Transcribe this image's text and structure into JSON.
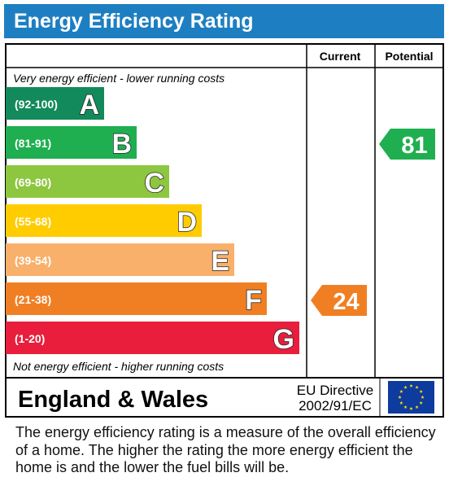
{
  "title": "Energy Efficiency Rating",
  "columns": {
    "current": "Current",
    "potential": "Potential"
  },
  "top_caption": "Very energy efficient - lower running costs",
  "bottom_caption": "Not energy efficient - higher running costs",
  "region": "England & Wales",
  "directive": {
    "line1": "EU Directive",
    "line2": "2002/91/EC"
  },
  "footnote": "The energy efficiency rating is a measure of the overall efficiency of a home.  The higher the rating the more energy efficient the home is and the lower the fuel bills will be.",
  "chart_data": {
    "type": "bar",
    "bands": [
      {
        "letter": "A",
        "range": "(92-100)",
        "min": 92,
        "max": 100,
        "color": "#138a5b"
      },
      {
        "letter": "B",
        "range": "(81-91)",
        "min": 81,
        "max": 91,
        "color": "#1faf50"
      },
      {
        "letter": "C",
        "range": "(69-80)",
        "min": 69,
        "max": 80,
        "color": "#8dc63f"
      },
      {
        "letter": "D",
        "range": "(55-68)",
        "min": 55,
        "max": 68,
        "color": "#ffcc00"
      },
      {
        "letter": "E",
        "range": "(39-54)",
        "min": 39,
        "max": 54,
        "color": "#f8b06b"
      },
      {
        "letter": "F",
        "range": "(21-38)",
        "min": 21,
        "max": 38,
        "color": "#f07f24"
      },
      {
        "letter": "G",
        "range": "(1-20)",
        "min": 1,
        "max": 20,
        "color": "#e81e3c"
      }
    ],
    "current": {
      "value": 24,
      "band": "F",
      "color": "#f07f24"
    },
    "potential": {
      "value": 81,
      "band": "B",
      "color": "#1faf50"
    }
  }
}
